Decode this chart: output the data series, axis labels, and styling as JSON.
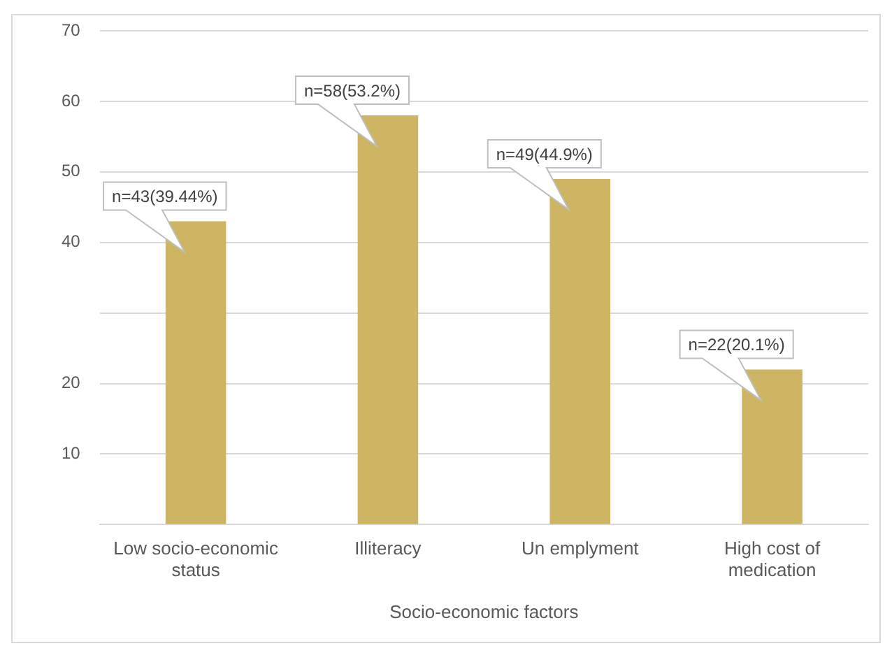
{
  "chart_data": {
    "type": "bar",
    "xlabel": "Socio-economic factors",
    "categories": [
      "Low socio-economic status",
      "Illiteracy",
      "Un emplyment",
      "High cost of medication"
    ],
    "values": [
      43,
      58,
      49,
      22
    ],
    "color": "#cdb563",
    "value_labels": [
      "n=43(39.44%)",
      "n=58(53.2%)",
      "n=49(44.9%)",
      "n=22(20.1%)"
    ],
    "ylim": [
      0,
      70
    ],
    "yticks": [
      {
        "value": 0,
        "label": null
      },
      10,
      20,
      {
        "value": 30,
        "label": null
      },
      40,
      50,
      60,
      70
    ],
    "grid": "y",
    "legend": false
  }
}
